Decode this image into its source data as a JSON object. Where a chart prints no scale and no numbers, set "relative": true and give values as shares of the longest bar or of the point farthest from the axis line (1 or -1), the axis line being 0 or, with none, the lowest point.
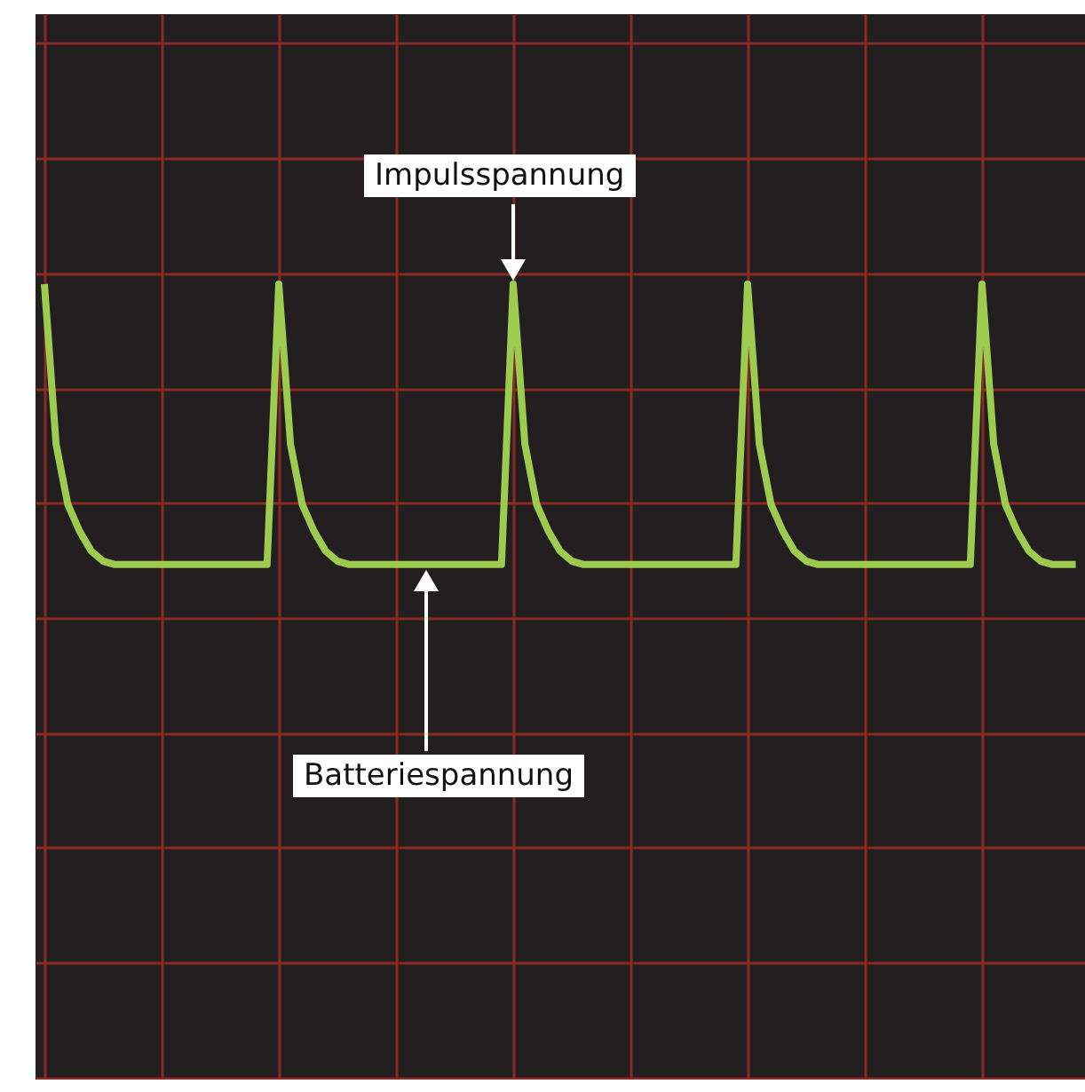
{
  "chart_data": {
    "type": "line",
    "relative": true,
    "grid": true,
    "legend": false,
    "categories": [
      null,
      null,
      null,
      null,
      null,
      null,
      null,
      null,
      null,
      null,
      null,
      null,
      null,
      null,
      null,
      null,
      null,
      null,
      null,
      null,
      null,
      null,
      null,
      null,
      null,
      null,
      null,
      null,
      null,
      null,
      null,
      null,
      null,
      null,
      null,
      null,
      null,
      null,
      null,
      null,
      null,
      null,
      null,
      null,
      null,
      null,
      null,
      null,
      null,
      null,
      null,
      null,
      null,
      null,
      null,
      null,
      null,
      null,
      null,
      null,
      null,
      null,
      null,
      null,
      null,
      null,
      null,
      null,
      null,
      null,
      null,
      null,
      null,
      null,
      null,
      null,
      null,
      null,
      null,
      null,
      null,
      null,
      null,
      null,
      null,
      null,
      null,
      null,
      null
    ],
    "series": [
      {
        "color": "#9ccb4f",
        "values": [
          1,
          0.52,
          0.34,
          0.26,
          0.2,
          0.17,
          0.16,
          0.16,
          0.16,
          0.16,
          0.16,
          0.16,
          0.16,
          0.16,
          0.16,
          0.16,
          0.16,
          0.16,
          0.16,
          0.16,
          1,
          0.52,
          0.34,
          0.26,
          0.2,
          0.17,
          0.16,
          0.16,
          0.16,
          0.16,
          0.16,
          0.16,
          0.16,
          0.16,
          0.16,
          0.16,
          0.16,
          0.16,
          0.16,
          0.16,
          1,
          0.52,
          0.34,
          0.26,
          0.2,
          0.17,
          0.16,
          0.16,
          0.16,
          0.16,
          0.16,
          0.16,
          0.16,
          0.16,
          0.16,
          0.16,
          0.16,
          0.16,
          0.16,
          0.16,
          1,
          0.52,
          0.34,
          0.26,
          0.2,
          0.17,
          0.16,
          0.16,
          0.16,
          0.16,
          0.16,
          0.16,
          0.16,
          0.16,
          0.16,
          0.16,
          0.16,
          0.16,
          0.16,
          0.16,
          1,
          0.52,
          0.34,
          0.26,
          0.2,
          0.17,
          0.16,
          0.16,
          0.16
        ]
      }
    ],
    "annotations": [
      "Impulsspannung",
      "Batteriespannung"
    ]
  }
}
